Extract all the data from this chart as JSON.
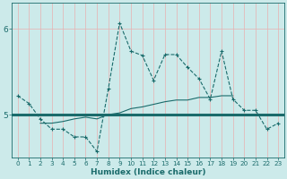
{
  "xlabel": "Humidex (Indice chaleur)",
  "bg_color": "#cceaea",
  "grid_color": "#e8b0b0",
  "line_color": "#1a6b6b",
  "x_values": [
    0,
    1,
    2,
    3,
    4,
    5,
    6,
    7,
    8,
    9,
    10,
    11,
    12,
    13,
    14,
    15,
    16,
    17,
    18,
    19,
    20,
    21,
    22,
    23
  ],
  "dashed_y": [
    5.22,
    5.13,
    4.95,
    4.83,
    4.83,
    4.74,
    4.74,
    4.57,
    5.3,
    6.07,
    5.74,
    5.69,
    5.4,
    5.7,
    5.7,
    5.55,
    5.42,
    5.18,
    5.74,
    5.18,
    5.05,
    5.05,
    4.83,
    4.9
  ],
  "flat_y": 5.0,
  "slope_x": [
    2,
    3,
    4,
    5,
    6,
    7,
    8,
    9,
    10,
    11,
    12,
    13,
    14,
    15,
    16,
    17,
    18,
    19
  ],
  "slope_y": [
    4.9,
    4.9,
    4.92,
    4.95,
    4.97,
    4.95,
    5.0,
    5.02,
    5.07,
    5.09,
    5.12,
    5.15,
    5.17,
    5.17,
    5.2,
    5.2,
    5.22,
    5.22
  ],
  "ylim": [
    4.5,
    6.3
  ],
  "yticks": [
    5,
    6
  ],
  "xlim": [
    -0.5,
    23.5
  ],
  "figsize": [
    3.2,
    2.0
  ],
  "dpi": 100
}
